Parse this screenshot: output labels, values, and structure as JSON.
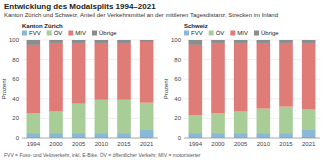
{
  "title": "Entwicklung des Modalsplits 1994–2021",
  "subtitle": "Kanton Zürich und Schweiz, Anteil der Verkehrsmittel an der mittleren Tagesdistanz, Strecken im Inland",
  "annotations": [
    "FVV = Fuss- und Veloverkehr, inkl. E-Bike, ÖV = öffentlicher Verkehr, MIV = motorisierter"
  ],
  "chart_data": [
    {
      "type": "bar",
      "stacked": true,
      "grid": true,
      "title": "Kanton Zürich",
      "y_label": "Prozent",
      "categories": [
        1994,
        2000,
        2005,
        2010,
        2015,
        2021
      ],
      "series": [
        {
          "name": "FVV",
          "color": "#8ab9d8",
          "values": [
            5,
            5,
            5,
            5,
            5,
            9
          ]
        },
        {
          "name": "ÖV",
          "color": "#a8cd96",
          "values": [
            20,
            22,
            30,
            34,
            34,
            27
          ]
        },
        {
          "name": "MIV",
          "color": "#e07c78",
          "values": [
            70,
            70,
            62,
            58,
            58,
            62
          ]
        },
        {
          "name": "Übrige",
          "color": "#8c8c8c",
          "values": [
            5,
            3,
            3,
            3,
            3,
            2
          ]
        }
      ],
      "ylim": [
        0,
        100
      ],
      "yticks": [
        0,
        20,
        40,
        60,
        80,
        100
      ]
    },
    {
      "type": "bar",
      "stacked": true,
      "grid": true,
      "title": "Schweiz",
      "y_label": "Prozent",
      "categories": [
        1994,
        2000,
        2005,
        2010,
        2015,
        2021
      ],
      "series": [
        {
          "name": "FVV",
          "color": "#8ab9d8",
          "values": [
            5,
            5,
            5,
            5,
            5,
            9
          ]
        },
        {
          "name": "ÖV",
          "color": "#a8cd96",
          "values": [
            18,
            20,
            22,
            25,
            27,
            20
          ]
        },
        {
          "name": "MIV",
          "color": "#e07c78",
          "values": [
            72,
            72,
            70,
            67,
            65,
            68
          ]
        },
        {
          "name": "Übrige",
          "color": "#8c8c8c",
          "values": [
            5,
            3,
            3,
            3,
            3,
            3
          ]
        }
      ],
      "ylim": [
        0,
        100
      ],
      "yticks": [
        0,
        20,
        40,
        60,
        80,
        100
      ]
    }
  ]
}
